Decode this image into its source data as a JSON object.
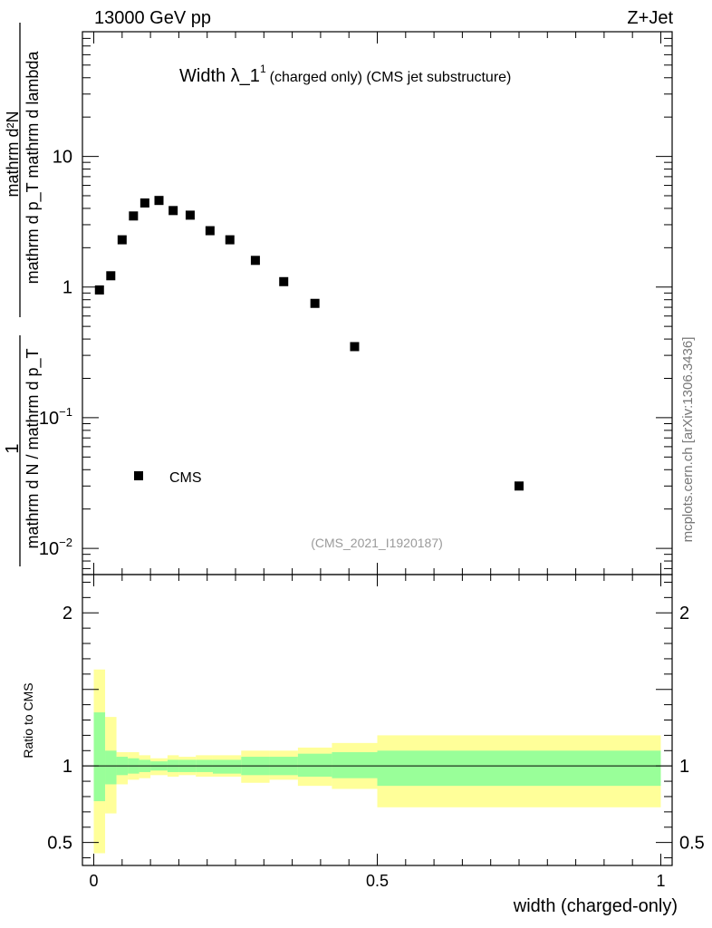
{
  "header": {
    "left": "13000 GeV pp",
    "right": "Z+Jet"
  },
  "plot_title": {
    "main": "Width λ_1",
    "sup": "1",
    "rest": "(charged only) (CMS jet substructure)"
  },
  "analysis_tag": "(CMS_2021_I1920187)",
  "side_label": "mcplots.cern.ch [arXiv:1306.3436]",
  "legend": {
    "label": "CMS"
  },
  "upper_ylabel": {
    "numerator": "mathrm d²N",
    "denominator": "mathrm d p_T mathrm d lambda",
    "prefix_num": "1",
    "prefix_den": "mathrm d N / mathrm d p_T"
  },
  "upper_yticks": [
    {
      "value": 10,
      "label": "10"
    },
    {
      "value": 1,
      "label": "1"
    },
    {
      "value": 0.1,
      "base": "10",
      "exp": "−1"
    },
    {
      "value": 0.01,
      "base": "10",
      "exp": "−2"
    }
  ],
  "ratio_ylabel": "Ratio to CMS",
  "ratio_yticks": [
    {
      "value": 2,
      "label": "2"
    },
    {
      "value": 1,
      "label": "1"
    },
    {
      "value": 0.5,
      "label": "0.5"
    }
  ],
  "xlabel": "width (charged-only)",
  "xticks": [
    {
      "value": 0,
      "label": "0"
    },
    {
      "value": 0.5,
      "label": "0.5"
    },
    {
      "value": 1,
      "label": "1"
    }
  ],
  "colors": {
    "band_outer": "#ffff99",
    "band_inner": "#99ff99",
    "marker": "#000000"
  },
  "chart_data": [
    {
      "type": "scatter",
      "panel": "main",
      "yscale": "log",
      "xlim": [
        -0.02,
        1.02
      ],
      "ylim": [
        0.0063,
        90
      ],
      "series": [
        {
          "name": "CMS",
          "x": [
            0.01,
            0.03,
            0.05,
            0.07,
            0.09,
            0.115,
            0.14,
            0.17,
            0.205,
            0.24,
            0.285,
            0.335,
            0.39,
            0.46,
            0.75
          ],
          "y": [
            0.95,
            1.22,
            2.3,
            3.5,
            4.4,
            4.6,
            3.85,
            3.55,
            2.7,
            2.3,
            1.6,
            1.1,
            0.75,
            0.35,
            0.03
          ]
        }
      ]
    },
    {
      "type": "area",
      "panel": "ratio",
      "ylim": [
        0.35,
        2.25
      ],
      "bins": [
        0,
        0.02,
        0.04,
        0.06,
        0.08,
        0.1,
        0.13,
        0.15,
        0.18,
        0.21,
        0.26,
        0.31,
        0.36,
        0.42,
        0.5,
        1.0
      ],
      "outer_low": [
        0.43,
        0.69,
        0.88,
        0.91,
        0.92,
        0.94,
        0.93,
        0.94,
        0.93,
        0.93,
        0.89,
        0.91,
        0.87,
        0.85,
        0.73
      ],
      "outer_high": [
        1.63,
        1.32,
        1.09,
        1.09,
        1.07,
        1.05,
        1.07,
        1.06,
        1.07,
        1.07,
        1.1,
        1.1,
        1.12,
        1.15,
        1.2
      ],
      "inner_low": [
        0.77,
        0.88,
        0.94,
        0.95,
        0.96,
        0.97,
        0.96,
        0.96,
        0.96,
        0.95,
        0.94,
        0.94,
        0.93,
        0.92,
        0.87
      ],
      "inner_high": [
        1.35,
        1.1,
        1.06,
        1.05,
        1.04,
        1.03,
        1.04,
        1.04,
        1.04,
        1.04,
        1.06,
        1.06,
        1.08,
        1.09,
        1.1
      ],
      "reference": 1
    }
  ]
}
